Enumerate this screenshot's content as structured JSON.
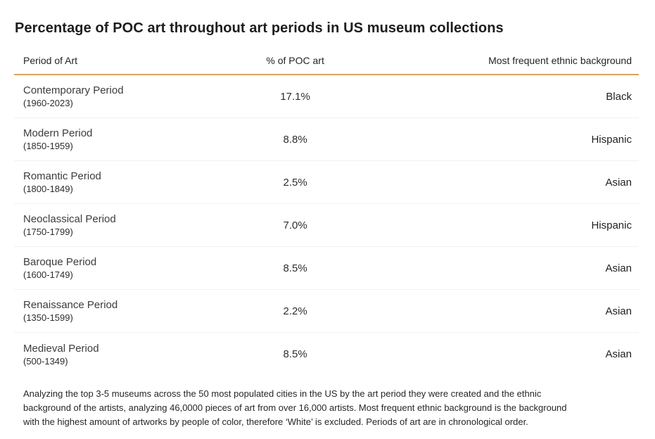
{
  "title": "Percentage of POC art throughout art periods in US museum collections",
  "table": {
    "headers": {
      "period": "Period of Art",
      "percent": "% of POC art",
      "ethnicity": "Most frequent ethnic background"
    },
    "rows": [
      {
        "period": "Contemporary Period",
        "years": "(1960-2023)",
        "percent": "17.1%",
        "ethnicity": "Black"
      },
      {
        "period": "Modern Period",
        "years": "(1850-1959)",
        "percent": "8.8%",
        "ethnicity": "Hispanic"
      },
      {
        "period": "Romantic Period",
        "years": "(1800-1849)",
        "percent": "2.5%",
        "ethnicity": "Asian"
      },
      {
        "period": "Neoclassical Period",
        "years": "(1750-1799)",
        "percent": "7.0%",
        "ethnicity": "Hispanic"
      },
      {
        "period": "Baroque Period",
        "years": "(1600-1749)",
        "percent": "8.5%",
        "ethnicity": "Asian"
      },
      {
        "period": "Renaissance Period",
        "years": "(1350-1599)",
        "percent": "2.2%",
        "ethnicity": "Asian"
      },
      {
        "period": "Medieval Period",
        "years": "(500-1349)",
        "percent": "8.5%",
        "ethnicity": "Asian"
      }
    ]
  },
  "footnote": {
    "lines": [
      "Analyzing the top 3-5 museums across the 50 most populated cities in the US by the art period they were created and the ethnic",
      "background of the artists, analyzing 46,0000 pieces of art from over 16,000 artists. Most frequent ethnic background is the background",
      "with the highest amount of artworks by people of color, therefore ‘White’ is excluded. Periods of art are in chronological order."
    ]
  },
  "colors": {
    "header_rule": "#d9a361",
    "row_divider": "#f4f1ec",
    "title_text": "#1d1d1f",
    "body_text": "#2e2e2e",
    "background": "#ffffff"
  },
  "chart_data": {
    "type": "table",
    "title": "Percentage of POC art throughout art periods in US museum collections",
    "columns": [
      "Period of Art",
      "% of POC art",
      "Most frequent ethnic background"
    ],
    "categories": [
      "Contemporary Period (1960-2023)",
      "Modern Period (1850-1959)",
      "Romantic Period (1800-1849)",
      "Neoclassical Period (1750-1799)",
      "Baroque Period (1600-1749)",
      "Renaissance Period (1350-1599)",
      "Medieval Period (500-1349)"
    ],
    "values": [
      17.1,
      8.8,
      2.5,
      7.0,
      8.5,
      2.2,
      8.5
    ],
    "series": [
      {
        "name": "% of POC art",
        "values": [
          17.1,
          8.8,
          2.5,
          7.0,
          8.5,
          2.2,
          8.5
        ]
      },
      {
        "name": "Most frequent ethnic background",
        "values": [
          "Black",
          "Hispanic",
          "Asian",
          "Hispanic",
          "Asian",
          "Asian",
          "Asian"
        ]
      }
    ],
    "note": "Analyzing the top 3-5 museums across the 50 most populated cities in the US by the art period they were created and the ethnic background of the artists, analyzing 46,0000 pieces of art from over 16,000 artists. Most frequent ethnic background is the background with the highest amount of artworks by people of color, therefore ‘White’ is excluded. Periods of art are in chronological order."
  }
}
